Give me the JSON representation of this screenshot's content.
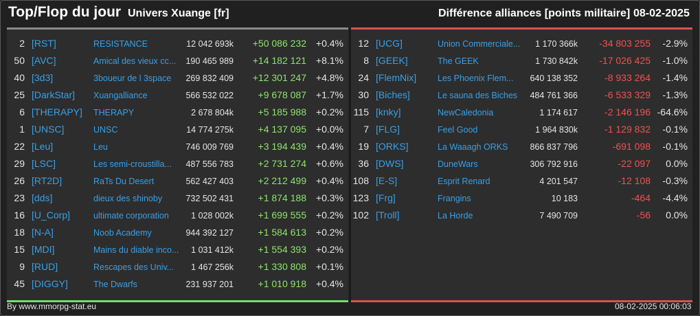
{
  "header": {
    "title": "Top/Flop du jour",
    "universe": "Univers Xuange [fr]",
    "metric": "Différence alliances [points militaire]",
    "date": "08-02-2025"
  },
  "colors": {
    "positive": "#8de56d",
    "negative": "#ef5350",
    "link": "#39a0e8"
  },
  "top": [
    {
      "rank": "2",
      "tag": "[RST]",
      "name": "RESISTANCE",
      "points": "12 042 693k",
      "diff": "+50 086 232",
      "pct": "+0.4%"
    },
    {
      "rank": "50",
      "tag": "[AVC]",
      "name": "Amical des vieux cc...",
      "points": "190 465 989",
      "diff": "+14 182 121",
      "pct": "+8.1%"
    },
    {
      "rank": "40",
      "tag": "[3d3]",
      "name": "3boueur de l 3space",
      "points": "269 832 409",
      "diff": "+12 301 247",
      "pct": "+4.8%"
    },
    {
      "rank": "25",
      "tag": "[DarkStar]",
      "name": "Xuangalliance",
      "points": "566 532 022",
      "diff": "+9 678 087",
      "pct": "+1.7%"
    },
    {
      "rank": "6",
      "tag": "[THERAPY]",
      "name": "THERAPY",
      "points": "2 678 804k",
      "diff": "+5 185 988",
      "pct": "+0.2%"
    },
    {
      "rank": "1",
      "tag": "[UNSC]",
      "name": "UNSC",
      "points": "14 774 275k",
      "diff": "+4 137 095",
      "pct": "+0.0%"
    },
    {
      "rank": "22",
      "tag": "[Leu]",
      "name": "Leu",
      "points": "746 009 769",
      "diff": "+3 194 439",
      "pct": "+0.4%"
    },
    {
      "rank": "29",
      "tag": "[LSC]",
      "name": "Les semi-croustilla...",
      "points": "487 556 783",
      "diff": "+2 731 274",
      "pct": "+0.6%"
    },
    {
      "rank": "26",
      "tag": "[RT2D]",
      "name": "RaTs Du Desert",
      "points": "562 427 403",
      "diff": "+2 212 499",
      "pct": "+0.4%"
    },
    {
      "rank": "23",
      "tag": "[dds]",
      "name": "dieux des shinoby",
      "points": "732 502 431",
      "diff": "+1 874 188",
      "pct": "+0.3%"
    },
    {
      "rank": "16",
      "tag": "[U_Corp]",
      "name": "ultimate corporation",
      "points": "1 028 002k",
      "diff": "+1 699 555",
      "pct": "+0.2%"
    },
    {
      "rank": "18",
      "tag": "[N-A]",
      "name": "Noob Academy",
      "points": "944 392 127",
      "diff": "+1 584 613",
      "pct": "+0.2%"
    },
    {
      "rank": "15",
      "tag": "[MDI]",
      "name": "Mains du diable inco...",
      "points": "1 031 412k",
      "diff": "+1 554 393",
      "pct": "+0.2%"
    },
    {
      "rank": "9",
      "tag": "[RUD]",
      "name": "Rescapes des Univ...",
      "points": "1 467 256k",
      "diff": "+1 330 808",
      "pct": "+0.1%"
    },
    {
      "rank": "45",
      "tag": "[DIGGY]",
      "name": "The Dwarfs",
      "points": "231 937 201",
      "diff": "+1 010 918",
      "pct": "+0.4%"
    }
  ],
  "flop": [
    {
      "rank": "12",
      "tag": "[UCG]",
      "name": "Union Commerciale...",
      "points": "1 170 366k",
      "diff": "-34 803 255",
      "pct": "-2.9%"
    },
    {
      "rank": "8",
      "tag": "[GEEK]",
      "name": "The GEEK",
      "points": "1 730 842k",
      "diff": "-17 026 425",
      "pct": "-1.0%"
    },
    {
      "rank": "24",
      "tag": "[FlemNix]",
      "name": "Les Phoenix Flem...",
      "points": "640 138 352",
      "diff": "-8 933 264",
      "pct": "-1.4%"
    },
    {
      "rank": "30",
      "tag": "[Biches]",
      "name": "Le sauna des Biches",
      "points": "484 761 366",
      "diff": "-6 533 329",
      "pct": "-1.3%"
    },
    {
      "rank": "115",
      "tag": "[knky]",
      "name": "NewCaledonia",
      "points": "1 174 617",
      "diff": "-2 146 196",
      "pct": "-64.6%"
    },
    {
      "rank": "7",
      "tag": "[FLG]",
      "name": "Feel Good",
      "points": "1 964 830k",
      "diff": "-1 129 832",
      "pct": "-0.1%"
    },
    {
      "rank": "19",
      "tag": "[ORKS]",
      "name": "La Waaagh ORKS",
      "points": "866 837 796",
      "diff": "-691 098",
      "pct": "-0.1%"
    },
    {
      "rank": "36",
      "tag": "[DWS]",
      "name": "DuneWars",
      "points": "306 792 916",
      "diff": "-22 097",
      "pct": "0.0%"
    },
    {
      "rank": "108",
      "tag": "[E-S]",
      "name": "Esprit Renard",
      "points": "4 201 547",
      "diff": "-12 108",
      "pct": "-0.3%"
    },
    {
      "rank": "123",
      "tag": "[Frg]",
      "name": "Frangins",
      "points": "10 183",
      "diff": "-464",
      "pct": "-4.4%"
    },
    {
      "rank": "102",
      "tag": "[Troll]",
      "name": "La Horde",
      "points": "7 490 709",
      "diff": "-56",
      "pct": "0.0%"
    }
  ],
  "footer": {
    "source": "By www.mmorpg-stat.eu",
    "timestamp": "08-02-2025 00:06:03"
  }
}
